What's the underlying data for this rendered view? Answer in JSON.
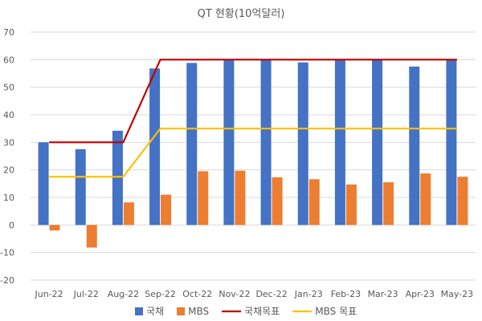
{
  "chart_data": {
    "type": "bar",
    "title": "QT 현황(10억달러)",
    "xlabel": "",
    "ylabel": "",
    "ylim": [
      -20,
      70
    ],
    "yticks": [
      -20,
      -10,
      0,
      10,
      20,
      30,
      40,
      50,
      60,
      70
    ],
    "grid": true,
    "legend_position": "bottom",
    "categories": [
      "Jun-22",
      "Jul-22",
      "Aug-22",
      "Sep-22",
      "Oct-22",
      "Nov-22",
      "Dec-22",
      "Jan-23",
      "Feb-23",
      "Mar-23",
      "Apr-23",
      "May-23"
    ],
    "series": [
      {
        "name": "국채",
        "type": "bar",
        "color": "#4472C4",
        "values": [
          30.0,
          27.5,
          34.2,
          56.8,
          58.8,
          60.0,
          60.0,
          59.0,
          60.0,
          60.0,
          57.5,
          60.0
        ]
      },
      {
        "name": "MBS",
        "type": "bar",
        "color": "#ED7D31",
        "values": [
          -2.0,
          -8.2,
          8.2,
          11.0,
          19.5,
          19.7,
          17.3,
          16.6,
          14.7,
          15.5,
          18.7,
          17.5
        ]
      },
      {
        "name": "국채목표",
        "type": "line",
        "color": "#C00000",
        "values": [
          30,
          30,
          30,
          60,
          60,
          60,
          60,
          60,
          60,
          60,
          60,
          60
        ]
      },
      {
        "name": "MBS 목표",
        "type": "line",
        "color": "#FFC000",
        "values": [
          17.5,
          17.5,
          17.5,
          35,
          35,
          35,
          35,
          35,
          35,
          35,
          35,
          35
        ]
      }
    ]
  }
}
